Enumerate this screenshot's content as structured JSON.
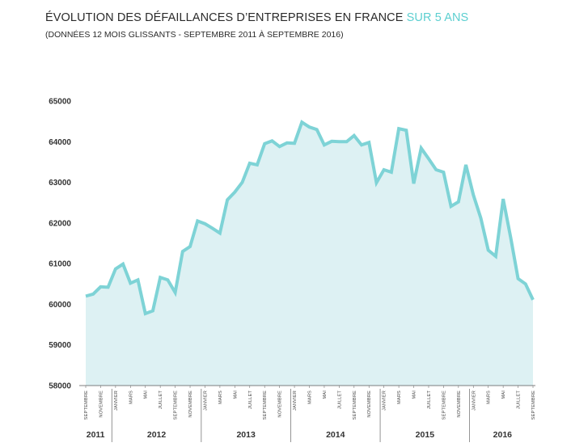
{
  "header": {
    "title_main": "ÉVOLUTION DES DÉFAILLANCES D’ENTREPRISES EN FRANCE",
    "title_accent": "SUR 5 ANS",
    "subtitle": "(DONNÉES 12 MOIS GLISSANTS - SEPTEMBRE 2011 À SEPTEMBRE 2016)"
  },
  "chart_data": {
    "type": "area",
    "ylim": [
      58000,
      65000
    ],
    "yticks": [
      58000,
      59000,
      60000,
      61000,
      62000,
      63000,
      64000,
      65000
    ],
    "grid": false,
    "line_color": "#7ed3d6",
    "fill_color": "#ddf1f3",
    "x": [
      "2011-09",
      "2011-10",
      "2011-11",
      "2011-12",
      "2012-01",
      "2012-02",
      "2012-03",
      "2012-04",
      "2012-05",
      "2012-06",
      "2012-07",
      "2012-08",
      "2012-09",
      "2012-10",
      "2012-11",
      "2012-12",
      "2013-01",
      "2013-02",
      "2013-03",
      "2013-04",
      "2013-05",
      "2013-06",
      "2013-07",
      "2013-08",
      "2013-09",
      "2013-10",
      "2013-11",
      "2013-12",
      "2014-01",
      "2014-02",
      "2014-03",
      "2014-04",
      "2014-05",
      "2014-06",
      "2014-07",
      "2014-08",
      "2014-09",
      "2014-10",
      "2014-11",
      "2014-12",
      "2015-01",
      "2015-02",
      "2015-03",
      "2015-04",
      "2015-05",
      "2015-06",
      "2015-07",
      "2015-08",
      "2015-09",
      "2015-10",
      "2015-11",
      "2015-12",
      "2016-01",
      "2016-02",
      "2016-03",
      "2016-04",
      "2016-05",
      "2016-06",
      "2016-07",
      "2016-08",
      "2016-09"
    ],
    "values": [
      60200,
      60250,
      60430,
      60420,
      60870,
      60990,
      60520,
      60600,
      59770,
      59840,
      60660,
      60600,
      60290,
      61300,
      61420,
      62050,
      61980,
      61870,
      61750,
      62570,
      62760,
      63000,
      63470,
      63430,
      63950,
      64020,
      63880,
      63970,
      63960,
      64480,
      64360,
      64300,
      63920,
      64010,
      64000,
      64000,
      64150,
      63920,
      63980,
      62990,
      63310,
      63250,
      64320,
      64280,
      62970,
      63840,
      63580,
      63310,
      63250,
      62410,
      62520,
      63430,
      62690,
      62120,
      61330,
      61180,
      62590,
      61650,
      60630,
      60500,
      60110
    ],
    "month_labels": [
      "SEPTEMBRE",
      "NOVEMBRE",
      "JANVIER",
      "MARS",
      "MAI",
      "JUILLET",
      "SEPTEMBRE",
      "NOVEMBRE",
      "JANVIER",
      "MARS",
      "MAI",
      "JUILLET",
      "SEPTEMBRE",
      "NOVEMBRE",
      "JANVIER",
      "MARS",
      "MAI",
      "JUILLET",
      "SEPTEMBRE",
      "NOVEMBRE",
      "JANVIER",
      "MARS",
      "MAI",
      "JUILLET",
      "SEPTEMBRE",
      "NOVEMBRE",
      "JANVIER",
      "MARS",
      "MAI",
      "JUILLET",
      "SEPTEMBRE"
    ],
    "years": [
      "2011",
      "2012",
      "2013",
      "2014",
      "2015",
      "2016"
    ]
  }
}
